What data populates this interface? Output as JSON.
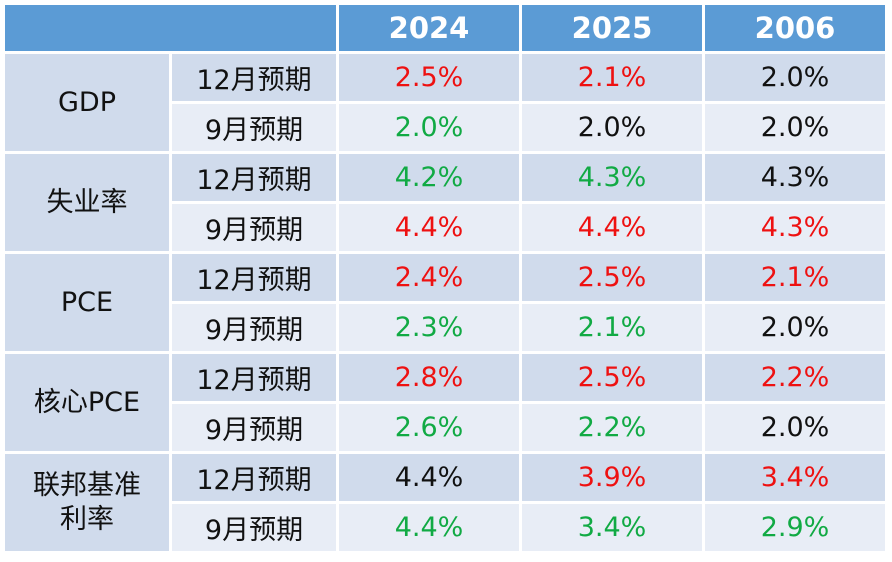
{
  "header": {
    "corner": "",
    "years": [
      "2024",
      "2025",
      "2006"
    ]
  },
  "groups": [
    {
      "metric": "GDP",
      "rows": [
        {
          "label": "12月预期",
          "values": [
            {
              "v": "2.5%",
              "color": "#ee1111"
            },
            {
              "v": "2.1%",
              "color": "#ee1111"
            },
            {
              "v": "2.0%",
              "color": "#111111"
            }
          ]
        },
        {
          "label": "9月预期",
          "values": [
            {
              "v": "2.0%",
              "color": "#11aa44"
            },
            {
              "v": "2.0%",
              "color": "#111111"
            },
            {
              "v": "2.0%",
              "color": "#111111"
            }
          ]
        }
      ]
    },
    {
      "metric": "失业率",
      "rows": [
        {
          "label": "12月预期",
          "values": [
            {
              "v": "4.2%",
              "color": "#11aa44"
            },
            {
              "v": "4.3%",
              "color": "#11aa44"
            },
            {
              "v": "4.3%",
              "color": "#111111"
            }
          ]
        },
        {
          "label": "9月预期",
          "values": [
            {
              "v": "4.4%",
              "color": "#ee1111"
            },
            {
              "v": "4.4%",
              "color": "#ee1111"
            },
            {
              "v": "4.3%",
              "color": "#ee1111"
            }
          ]
        }
      ]
    },
    {
      "metric": "PCE",
      "rows": [
        {
          "label": "12月预期",
          "values": [
            {
              "v": "2.4%",
              "color": "#ee1111"
            },
            {
              "v": "2.5%",
              "color": "#ee1111"
            },
            {
              "v": "2.1%",
              "color": "#ee1111"
            }
          ]
        },
        {
          "label": "9月预期",
          "values": [
            {
              "v": "2.3%",
              "color": "#11aa44"
            },
            {
              "v": "2.1%",
              "color": "#11aa44"
            },
            {
              "v": "2.0%",
              "color": "#111111"
            }
          ]
        }
      ]
    },
    {
      "metric": "核心PCE",
      "rows": [
        {
          "label": "12月预期",
          "values": [
            {
              "v": "2.8%",
              "color": "#ee1111"
            },
            {
              "v": "2.5%",
              "color": "#ee1111"
            },
            {
              "v": "2.2%",
              "color": "#ee1111"
            }
          ]
        },
        {
          "label": "9月预期",
          "values": [
            {
              "v": "2.6%",
              "color": "#11aa44"
            },
            {
              "v": "2.2%",
              "color": "#11aa44"
            },
            {
              "v": "2.0%",
              "color": "#111111"
            }
          ]
        }
      ]
    },
    {
      "metric": "联邦基准\n利率",
      "rows": [
        {
          "label": "12月预期",
          "values": [
            {
              "v": "4.4%",
              "color": "#111111"
            },
            {
              "v": "3.9%",
              "color": "#ee1111"
            },
            {
              "v": "3.4%",
              "color": "#ee1111"
            }
          ]
        },
        {
          "label": "9月预期",
          "values": [
            {
              "v": "4.4%",
              "color": "#11aa44"
            },
            {
              "v": "3.4%",
              "color": "#11aa44"
            },
            {
              "v": "2.9%",
              "color": "#11aa44"
            }
          ]
        }
      ]
    }
  ]
}
